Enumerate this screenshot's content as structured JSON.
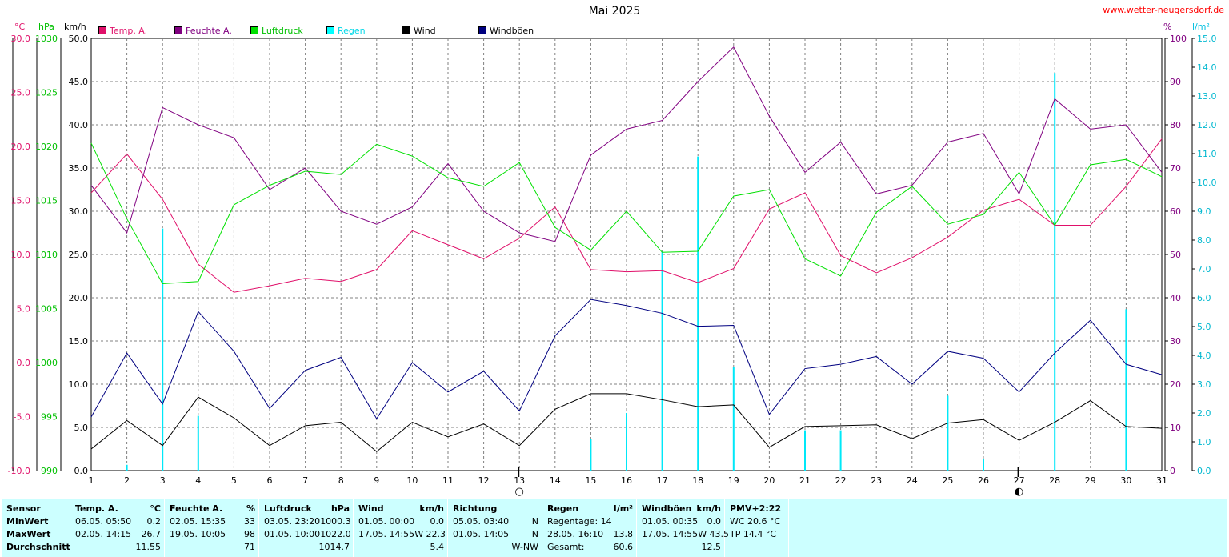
{
  "title": "Mai 2025",
  "site": "www.wetter-neugersdorf.de",
  "units": {
    "temp": "°C",
    "pressure": "hPa",
    "wind": "km/h",
    "humidity": "%",
    "rain": "l/m²"
  },
  "legend": [
    {
      "label": "Temp. A.",
      "color": "#e0106a"
    },
    {
      "label": "Feuchte A.",
      "color": "#800080"
    },
    {
      "label": "Luftdruck",
      "color": "#00e000"
    },
    {
      "label": "Regen",
      "color": "#00ffff"
    },
    {
      "label": "Wind",
      "color": "#000000"
    },
    {
      "label": "Windböen",
      "color": "#000080"
    }
  ],
  "colors": {
    "temp": "#e0106a",
    "humidity": "#800080",
    "pressure": "#00e000",
    "rain": "#00e8f8",
    "wind": "#000000",
    "gust": "#000080",
    "grid": "#808080",
    "table_bg": "#ccffff"
  },
  "chart_data": {
    "type": "line",
    "title": "Mai 2025",
    "grid": true,
    "legend_position": "top",
    "x": [
      1,
      2,
      3,
      4,
      5,
      6,
      7,
      8,
      9,
      10,
      11,
      12,
      13,
      14,
      15,
      16,
      17,
      18,
      19,
      20,
      21,
      22,
      23,
      24,
      25,
      26,
      27,
      28,
      29,
      30,
      31
    ],
    "axes": {
      "temp": {
        "unit": "°C",
        "range": [
          -10,
          30
        ],
        "ticks": [
          "30.0",
          "25.0",
          "20.0",
          "15.0",
          "10.0",
          "5.0",
          "0.0",
          "-5.0",
          "-10.0"
        ]
      },
      "pressure": {
        "unit": "hPa",
        "range": [
          990,
          1030
        ],
        "ticks": [
          "1030",
          "1025",
          "1020",
          "1015",
          "1010",
          "1005",
          "1000",
          "995",
          "990"
        ]
      },
      "wind": {
        "unit": "km/h",
        "range": [
          0,
          50
        ],
        "ticks": [
          "50.0",
          "45.0",
          "40.0",
          "35.0",
          "30.0",
          "25.0",
          "20.0",
          "15.0",
          "10.0",
          "5.0",
          "0.0"
        ]
      },
      "humidity": {
        "unit": "%",
        "range": [
          0,
          100
        ],
        "ticks": [
          "100",
          "90",
          "80",
          "70",
          "60",
          "50",
          "40",
          "30",
          "20",
          "10",
          "0"
        ]
      },
      "rain": {
        "unit": "l/m²",
        "range": [
          0,
          15
        ],
        "ticks": [
          "15.0",
          "14.0",
          "13.0",
          "12.0",
          "11.0",
          "10.0",
          "9.0",
          "8.0",
          "7.0",
          "6.0",
          "5.0",
          "4.0",
          "3.0",
          "2.0",
          "1.0",
          "0.0"
        ]
      }
    },
    "series": [
      {
        "name": "Temp. A.",
        "axis": "temp",
        "values": [
          15.7,
          19.3,
          15.1,
          9.1,
          6.5,
          7.1,
          7.8,
          7.5,
          8.6,
          12.2,
          10.9,
          9.6,
          11.5,
          14.4,
          8.6,
          8.4,
          8.5,
          7.4,
          8.7,
          14.2,
          15.7,
          9.9,
          8.3,
          9.7,
          11.6,
          14.1,
          15.1,
          12.7,
          12.7,
          16.3,
          20.7
        ],
        "values_note_free": true
      },
      {
        "name": "Feuchte A.",
        "axis": "humidity",
        "values": [
          66,
          55,
          84,
          80,
          77,
          65,
          70,
          60,
          57,
          61,
          71,
          60,
          55,
          53,
          73,
          79,
          81,
          90,
          98,
          82,
          69,
          76,
          64,
          66,
          76,
          78,
          64,
          86,
          79,
          80,
          69
        ]
      },
      {
        "name": "Luftdruck",
        "axis": "pressure",
        "values": [
          1020.3,
          1013.3,
          1007.3,
          1007.5,
          1014.6,
          1016.4,
          1017.7,
          1017.4,
          1020.2,
          1019.1,
          1017.1,
          1016.3,
          1018.5,
          1012.5,
          1010.4,
          1014.0,
          1010.2,
          1010.3,
          1015.4,
          1016.0,
          1009.6,
          1008.0,
          1013.9,
          1016.3,
          1012.8,
          1013.7,
          1017.6,
          1012.7,
          1018.3,
          1018.8,
          1017.2
        ]
      },
      {
        "name": "Wind",
        "axis": "wind",
        "values": [
          2.5,
          5.8,
          2.9,
          8.5,
          6.1,
          2.9,
          5.2,
          5.6,
          2.2,
          5.6,
          3.9,
          5.4,
          2.9,
          7.1,
          8.9,
          8.9,
          8.2,
          7.4,
          7.6,
          2.7,
          5.1,
          5.2,
          5.3,
          3.7,
          5.5,
          5.9,
          3.5,
          5.6,
          8.1,
          5.1,
          4.9
        ]
      },
      {
        "name": "Windböen",
        "axis": "wind",
        "values": [
          6.2,
          13.6,
          7.7,
          18.4,
          13.8,
          7.2,
          11.6,
          13.1,
          6.0,
          12.5,
          9.1,
          11.5,
          6.9,
          15.6,
          19.8,
          19.1,
          18.2,
          16.7,
          16.8,
          6.5,
          11.8,
          12.3,
          13.2,
          10.0,
          13.8,
          13.0,
          9.1,
          13.6,
          17.4,
          12.3,
          11.1
        ]
      },
      {
        "name": "Regen",
        "axis": "rain",
        "type": "bar",
        "values": [
          0,
          0.2,
          8.4,
          1.9,
          0,
          0,
          0,
          0,
          0,
          0,
          0,
          0,
          0,
          0,
          1.1,
          2.0,
          7.6,
          10.9,
          3.6,
          0,
          1.4,
          1.4,
          0,
          0,
          2.6,
          0.4,
          0,
          13.8,
          0,
          5.6,
          0
        ]
      }
    ]
  },
  "moon_markers": [
    {
      "day": 13,
      "symbol": "○"
    },
    {
      "day": 27,
      "symbol": "◐"
    }
  ],
  "table": [
    {
      "key": "sensor",
      "rows": [
        [
          "Sensor",
          ""
        ],
        [
          "MinWert",
          ""
        ],
        [
          "MaxWert",
          ""
        ],
        [
          "Durchschnitt",
          ""
        ]
      ]
    },
    {
      "key": "temp",
      "rows": [
        [
          "Temp. A.",
          "°C"
        ],
        [
          "06.05.   05:50",
          "0.2"
        ],
        [
          "02.05.   14:15",
          "26.7"
        ],
        [
          "",
          "11.55"
        ]
      ]
    },
    {
      "key": "humidity",
      "rows": [
        [
          "Feuchte A.",
          "%"
        ],
        [
          "02.05.   15:35",
          "33"
        ],
        [
          "19.05.   10:05",
          "98"
        ],
        [
          "",
          "71"
        ]
      ]
    },
    {
      "key": "pressure",
      "rows": [
        [
          "Luftdruck",
          "hPa"
        ],
        [
          "03.05.   23:20",
          "1000.3"
        ],
        [
          "01.05.   10:00",
          "1022.0"
        ],
        [
          "",
          "1014.7"
        ]
      ]
    },
    {
      "key": "wind",
      "rows": [
        [
          "Wind",
          "km/h"
        ],
        [
          "01.05.   00:00",
          "0.0"
        ],
        [
          "17.05.   14:55",
          "W  22.3"
        ],
        [
          "",
          "5.4"
        ]
      ]
    },
    {
      "key": "direction",
      "rows": [
        [
          "Richtung",
          ""
        ],
        [
          "05.05.   03:40",
          "N"
        ],
        [
          "01.05.   14:05",
          "N"
        ],
        [
          "",
          "W-NW"
        ]
      ]
    },
    {
      "key": "rain",
      "rows": [
        [
          "Regen",
          "l/m²"
        ],
        [
          "Regentage: 14",
          ""
        ],
        [
          "28.05.   16:10",
          "13.8"
        ],
        [
          "Gesamt:",
          "60.6"
        ]
      ]
    },
    {
      "key": "gust",
      "rows": [
        [
          "Windböen",
          "km/h"
        ],
        [
          "01.05.   00:35",
          "0.0"
        ],
        [
          "17.05.   14:55",
          "W  43.5"
        ],
        [
          "",
          "12.5"
        ]
      ]
    },
    {
      "key": "pmv",
      "rows": [
        [
          "PMV+2:22",
          ""
        ],
        [
          "WC 20.6 °C",
          ""
        ],
        [
          "TP 14.4 °C",
          ""
        ],
        [
          "",
          ""
        ]
      ]
    }
  ]
}
